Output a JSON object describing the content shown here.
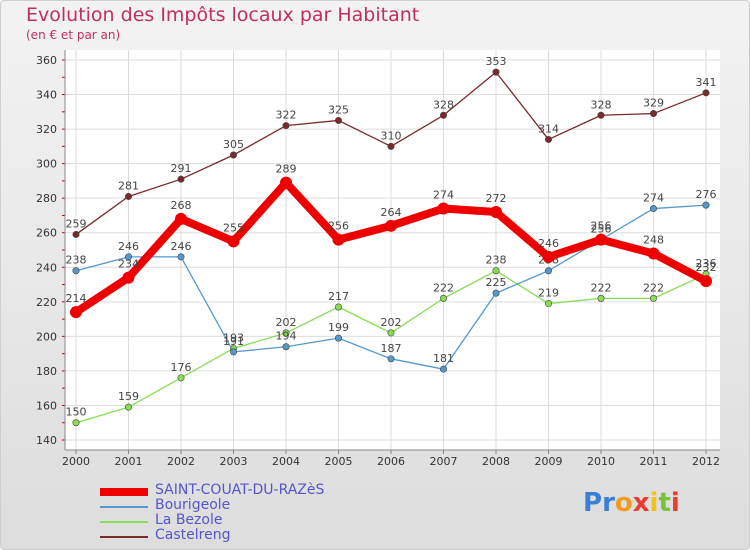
{
  "chart_data": {
    "type": "line",
    "title": "Evolution des Impôts locaux par Habitant",
    "subtitle": "(en € et par an)",
    "xlabel": "",
    "ylabel": "",
    "x": [
      "2000",
      "2001",
      "2002",
      "2003",
      "2004",
      "2005",
      "2006",
      "2007",
      "2008",
      "2009",
      "2010",
      "2011",
      "2012"
    ],
    "ylim": [
      140,
      360
    ],
    "yticks": [
      140,
      160,
      180,
      200,
      220,
      240,
      260,
      280,
      300,
      320,
      340,
      360
    ],
    "series": [
      {
        "name": "Castelreng",
        "color": "#7a2a2a",
        "values": [
          259,
          281,
          291,
          305,
          322,
          325,
          310,
          328,
          353,
          314,
          328,
          329,
          341
        ]
      },
      {
        "name": "La Bezole",
        "color": "#88dd55",
        "values": [
          150,
          159,
          176,
          193,
          202,
          217,
          202,
          222,
          238,
          219,
          222,
          222,
          236
        ]
      },
      {
        "name": "Bourigeole",
        "color": "#5599cc",
        "values": [
          238,
          246,
          246,
          191,
          194,
          199,
          187,
          181,
          225,
          238,
          256,
          274,
          276
        ]
      },
      {
        "name": "SAINT-COUAT-DU-RAZèS",
        "color": "#ee0000",
        "values": [
          214,
          234,
          268,
          255,
          289,
          256,
          264,
          274,
          272,
          246,
          256,
          248,
          232
        ]
      }
    ],
    "legend": [
      "SAINT-COUAT-DU-RAZèS",
      "Bourigeole",
      "La Bezole",
      "Castelreng"
    ]
  },
  "logo": {
    "text": "Proxiti"
  }
}
